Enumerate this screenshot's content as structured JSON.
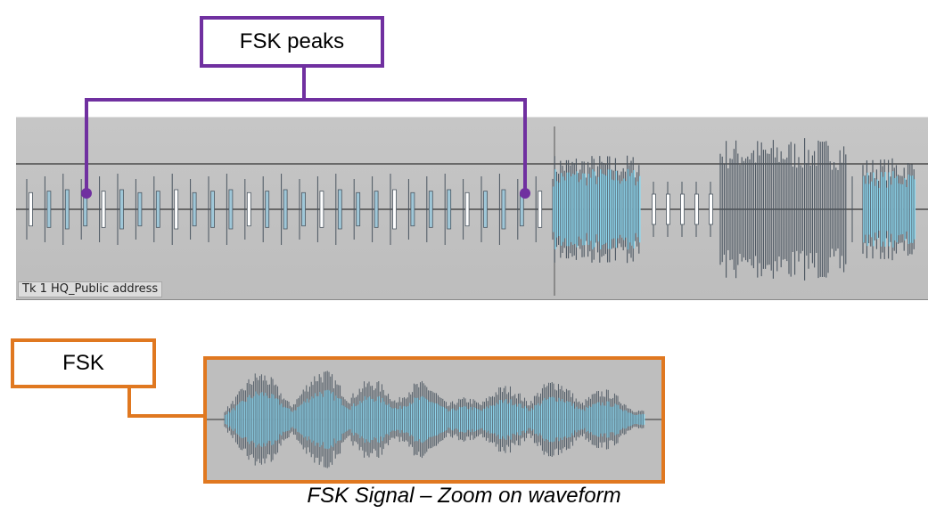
{
  "callouts": {
    "peaks_label": "FSK peaks",
    "fsk_label": "FSK"
  },
  "track": {
    "label": "Tk 1 HQ_Public address"
  },
  "caption": "FSK Signal – Zoom on waveform",
  "colors": {
    "peaks_callout": "#7030a0",
    "fsk_callout": "#e07820",
    "waveform_fill": "#8fd8ef",
    "waveform_deep": "#4f7fd6",
    "waveform_stroke": "#4a5560",
    "panel_bg": "#c2c2c2"
  }
}
